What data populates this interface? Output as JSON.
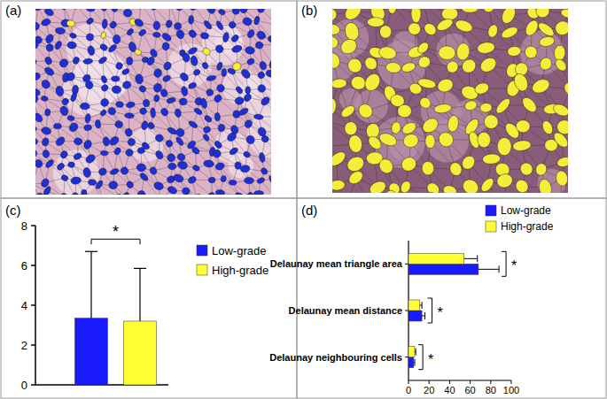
{
  "panels": [
    "(a)",
    "(b)",
    "(c)",
    "(d)"
  ],
  "chart_data": [
    {
      "type": "bar",
      "categories": [
        null
      ],
      "series": [
        {
          "name": "Low-grade",
          "color": "#1a1aff",
          "values": [
            3.35
          ],
          "errors": [
            3.35
          ]
        },
        {
          "name": "High-grade",
          "color": "#ffff33",
          "values": [
            3.2
          ],
          "errors": [
            2.65
          ]
        }
      ],
      "ylim": [
        0,
        8
      ],
      "yticks": [
        0,
        2,
        4,
        6,
        8
      ],
      "grid": false,
      "legend": "upper right",
      "annotation": "*"
    },
    {
      "type": "bar",
      "orientation": "horizontal",
      "categories": [
        "Delaunay mean triangle area",
        "Delaunay mean distance",
        "Delaunay neighbouring cells"
      ],
      "series": [
        {
          "name": "Low-grade",
          "color": "#1a1aff",
          "values": [
            68,
            13,
            5
          ],
          "errors": [
            20,
            3,
            1
          ]
        },
        {
          "name": "High-grade",
          "color": "#ffff33",
          "values": [
            54,
            11,
            6
          ],
          "errors": [
            13,
            2,
            1
          ]
        }
      ],
      "xlim": [
        0,
        100
      ],
      "xticks": [
        0,
        20,
        40,
        60,
        80,
        100
      ],
      "grid": false,
      "legend": "upper right",
      "annotations": [
        "*",
        "*",
        "*"
      ]
    }
  ]
}
